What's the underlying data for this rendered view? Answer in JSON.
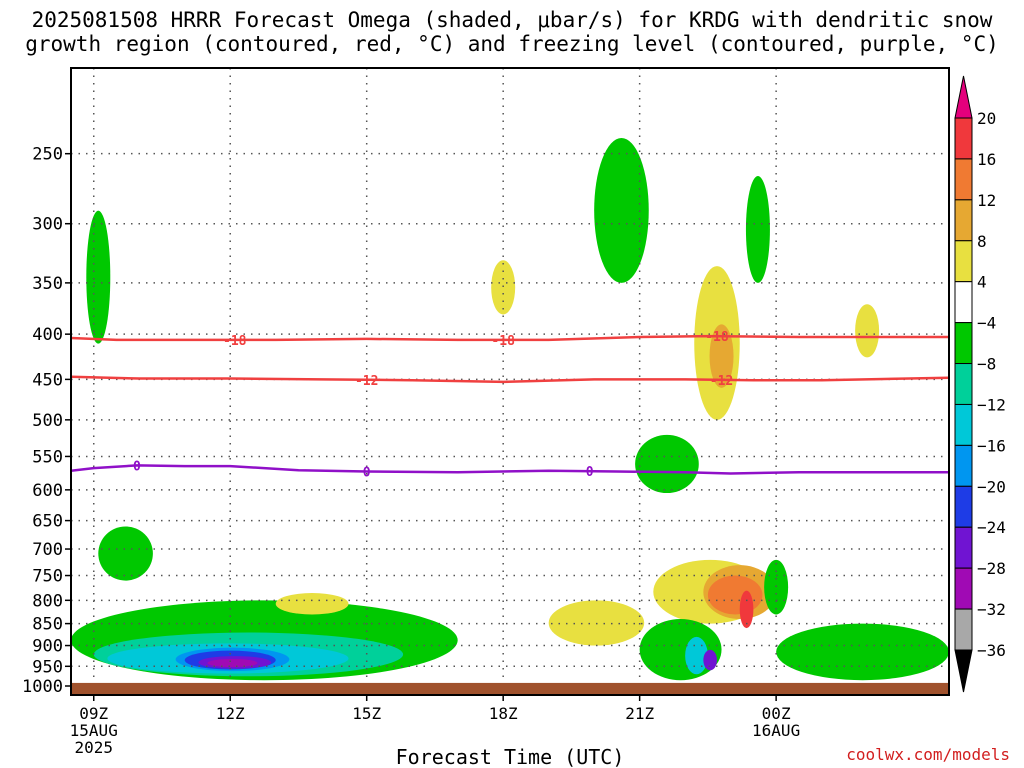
{
  "title": {
    "line1": "2025081508 HRRR Forecast Omega (shaded, μbar/s) for KRDG with dendritic snow",
    "line2": "growth region (contoured, red, °C) and freezing level (contoured, purple, °C)"
  },
  "watermark": "coolwx.com/models",
  "chart_data": {
    "type": "heatmap",
    "title": "2025081508 HRRR Forecast Omega (shaded, μbar/s) for KRDG with dendritic snow growth region (contoured, red, °C) and freezing level (contoured, purple, °C)",
    "xlabel": "Forecast Time (UTC)",
    "ylabel": "",
    "y_scale": "log",
    "ylim": [
      1000,
      200
    ],
    "xlim": [
      8.5,
      27.8
    ],
    "grid": true,
    "y_ticks": [
      250,
      300,
      350,
      400,
      450,
      500,
      550,
      600,
      650,
      700,
      750,
      800,
      850,
      900,
      950,
      1000
    ],
    "x_ticks": [
      {
        "x": 9,
        "lines": [
          "09Z",
          "15AUG",
          "2025"
        ]
      },
      {
        "x": 12,
        "lines": [
          "12Z"
        ]
      },
      {
        "x": 15,
        "lines": [
          "15Z"
        ]
      },
      {
        "x": 18,
        "lines": [
          "18Z"
        ]
      },
      {
        "x": 21,
        "lines": [
          "21Z"
        ]
      },
      {
        "x": 24,
        "lines": [
          "00Z",
          "16AUG"
        ]
      }
    ],
    "colorbar": {
      "labels": [
        "20",
        "16",
        "12",
        "8",
        "4",
        "−4",
        "−8",
        "−12",
        "−16",
        "−20",
        "−24",
        "−28",
        "−32",
        "−36"
      ],
      "colors": [
        "#e4007c",
        "#f0383c",
        "#f07a32",
        "#e6a832",
        "#e8e040",
        "#ffffff",
        "#00c800",
        "#00d09a",
        "#00c8d8",
        "#0096f0",
        "#1e3ce6",
        "#7014d2",
        "#a00ab4",
        "#a8a8a8",
        "#000000"
      ]
    },
    "omega_regions": [
      {
        "x": [
          9.1
        ],
        "p": [
          290,
          410
        ],
        "value": -6
      },
      {
        "x": [
          9.1,
          10.3
        ],
        "p": [
          660,
          760
        ],
        "value": -6
      },
      {
        "x": [
          8.5,
          17.0
        ],
        "p": [
          800,
          985
        ],
        "value": -6
      },
      {
        "x": [
          9.0,
          15.8
        ],
        "p": [
          870,
          975
        ],
        "value": -10
      },
      {
        "x": [
          9.3,
          14.6
        ],
        "p": [
          895,
          968
        ],
        "value": -14
      },
      {
        "x": [
          10.8,
          13.3
        ],
        "p": [
          905,
          962
        ],
        "value": -18
      },
      {
        "x": [
          11.0,
          13.0
        ],
        "p": [
          912,
          958
        ],
        "value": -22
      },
      {
        "x": [
          11.3,
          12.9
        ],
        "p": [
          925,
          956
        ],
        "value": -26
      },
      {
        "x": [
          11.5,
          12.6
        ],
        "p": [
          932,
          952
        ],
        "value": -30
      },
      {
        "x": [
          13.0,
          14.6
        ],
        "p": [
          785,
          830
        ],
        "value": 6
      },
      {
        "x": [
          18.0
        ],
        "p": [
          330,
          380
        ],
        "value": 6
      },
      {
        "x": [
          19.0,
          21.1
        ],
        "p": [
          800,
          900
        ],
        "value": 6
      },
      {
        "x": [
          20.9,
          22.3
        ],
        "p": [
          520,
          605
        ],
        "value": -6
      },
      {
        "x": [
          20.0,
          21.2
        ],
        "p": [
          240,
          350
        ],
        "value": -6
      },
      {
        "x": [
          22.2,
          23.2
        ],
        "p": [
          335,
          500
        ],
        "value": 6
      },
      {
        "x": [
          22.8
        ],
        "p": [
          390,
          460
        ],
        "value": 10
      },
      {
        "x": [
          21.3,
          23.8
        ],
        "p": [
          720,
          850
        ],
        "value": 6
      },
      {
        "x": [
          22.4,
          24.0
        ],
        "p": [
          730,
          840
        ],
        "value": 10
      },
      {
        "x": [
          22.5,
          23.7
        ],
        "p": [
          750,
          830
        ],
        "value": 14
      },
      {
        "x": [
          23.2,
          23.5
        ],
        "p": [
          780,
          860
        ],
        "value": 18
      },
      {
        "x": [
          21.0,
          22.8
        ],
        "p": [
          840,
          985
        ],
        "value": -6
      },
      {
        "x": [
          22.0,
          22.5
        ],
        "p": [
          880,
          970
        ],
        "value": -14
      },
      {
        "x": [
          22.4,
          22.7
        ],
        "p": [
          910,
          960
        ],
        "value": -26
      },
      {
        "x": [
          23.6
        ],
        "p": [
          265,
          350
        ],
        "value": -6
      },
      {
        "x": [
          24.0
        ],
        "p": [
          720,
          830
        ],
        "value": -6
      },
      {
        "x": [
          24.0,
          27.8
        ],
        "p": [
          850,
          985
        ],
        "value": -6
      },
      {
        "x": [
          26.0
        ],
        "p": [
          370,
          425
        ],
        "value": 6
      }
    ],
    "series": [
      {
        "name": "-18",
        "label_x": [
          12.1,
          18.0,
          22.7
        ],
        "x": [
          8.5,
          9.5,
          11.0,
          13.0,
          15.0,
          17.0,
          19.0,
          21.0,
          22.5,
          24.5,
          27.8
        ],
        "p": [
          404,
          406,
          406,
          406,
          405,
          406,
          406,
          403,
          402,
          403,
          403
        ]
      },
      {
        "name": "-12",
        "label_x": [
          15.0,
          22.8
        ],
        "x": [
          8.5,
          10.0,
          12.0,
          14.0,
          16.0,
          18.0,
          20.0,
          22.0,
          23.5,
          25.0,
          27.8
        ],
        "p": [
          447,
          449,
          449,
          450,
          451,
          453,
          450,
          450,
          451,
          451,
          448
        ]
      },
      {
        "name": "0",
        "label_x": [
          9.95,
          15.0,
          19.9
        ],
        "x": [
          8.5,
          9.0,
          9.95,
          11.0,
          12.0,
          13.5,
          15.0,
          17.0,
          19.0,
          20.5,
          22.0,
          23.0,
          24.5,
          26.0,
          27.8
        ],
        "p": [
          571,
          567,
          563,
          564,
          564,
          570,
          572,
          573,
          571,
          572,
          573,
          575,
          573,
          573,
          573
        ]
      }
    ],
    "surface": {
      "p_top": 992,
      "color": "#a0522d"
    }
  },
  "colors": {
    "snow_growth_contour": "#f04040",
    "freezing_level_contour": "#9010c8",
    "grid": "#555555",
    "surface": "#a0522d"
  }
}
